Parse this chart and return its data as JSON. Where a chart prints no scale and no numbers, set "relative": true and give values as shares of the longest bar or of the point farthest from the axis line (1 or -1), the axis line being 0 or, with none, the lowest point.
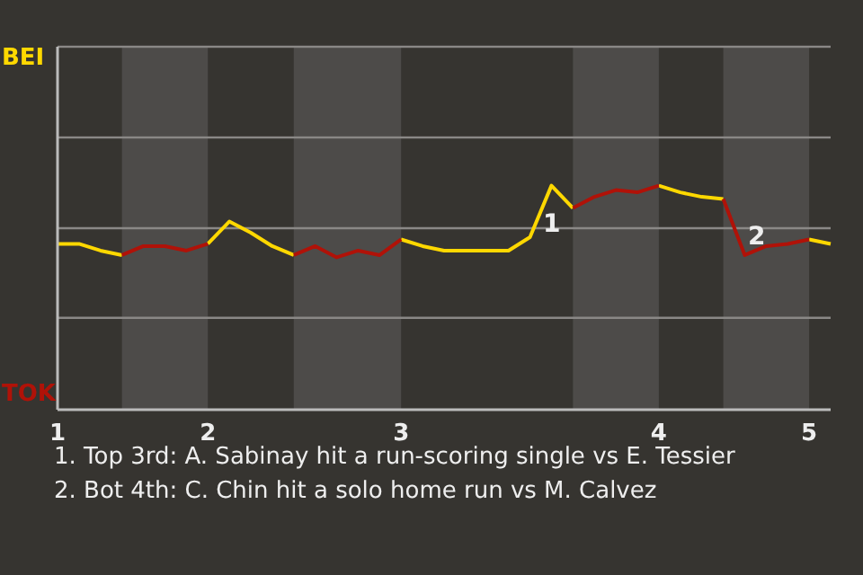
{
  "chart_data": {
    "type": "line",
    "relative": true,
    "categories": [
      "1",
      null,
      null,
      null,
      null,
      null,
      null,
      "2",
      null,
      null,
      null,
      null,
      null,
      null,
      null,
      null,
      "3",
      null,
      null,
      null,
      null,
      null,
      null,
      null,
      null,
      null,
      null,
      null,
      "4",
      null,
      null,
      null,
      null,
      null,
      null,
      "5",
      null
    ],
    "series": [
      {
        "color": "#ffd800",
        "values": [
          0.74,
          0.74,
          0.71,
          0.69,
          null,
          null,
          null,
          0.74,
          0.84,
          0.79,
          0.73,
          0.69,
          null,
          null,
          null,
          null,
          0.76,
          0.73,
          0.71,
          0.71,
          0.71,
          0.71,
          0.77,
          1,
          0.9,
          null,
          null,
          null,
          1,
          0.97,
          0.95,
          0.94,
          null,
          null,
          null,
          0.76,
          0.74
        ]
      },
      {
        "color": "#b01208",
        "values": [
          null,
          null,
          null,
          0.69,
          0.73,
          0.73,
          0.71,
          0.74,
          null,
          null,
          null,
          0.69,
          0.73,
          0.68,
          0.71,
          0.69,
          0.76,
          null,
          null,
          null,
          null,
          null,
          null,
          null,
          0.9,
          0.95,
          0.98,
          0.97,
          1,
          null,
          null,
          0.94,
          0.69,
          0.73,
          0.74,
          0.76,
          null
        ]
      }
    ],
    "legend": false,
    "ref_lines": [
      {
        "axis": "y",
        "value": 0.81,
        "color": "#8a8886"
      },
      {
        "axis": "y",
        "value": 0.41,
        "color": "#8a8886"
      }
    ],
    "marker": "none",
    "line_style": "solid",
    "annotations": [
      "BEI",
      "TOK",
      "1",
      "2",
      "1. Top 3rd: A. Sabinay hit a run-scoring single vs E. Tessier",
      "2. Bot 4th: C. Chin hit a solo home run vs M. Calvez"
    ]
  }
}
